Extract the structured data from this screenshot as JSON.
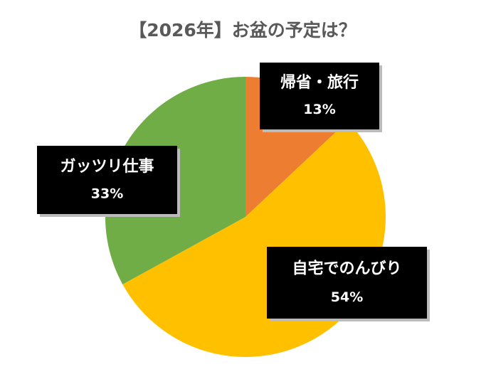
{
  "chart_data": {
    "type": "pie",
    "title": "【2026年】お盆の予定は？",
    "categories": [
      "帰省・旅行",
      "自宅でのんびり",
      "ガッツリ仕事"
    ],
    "values": [
      13,
      54,
      33
    ],
    "value_labels": [
      "13%",
      "54%",
      "33%"
    ],
    "colors": [
      "#ED7D31",
      "#FFC000",
      "#70AD47"
    ]
  }
}
